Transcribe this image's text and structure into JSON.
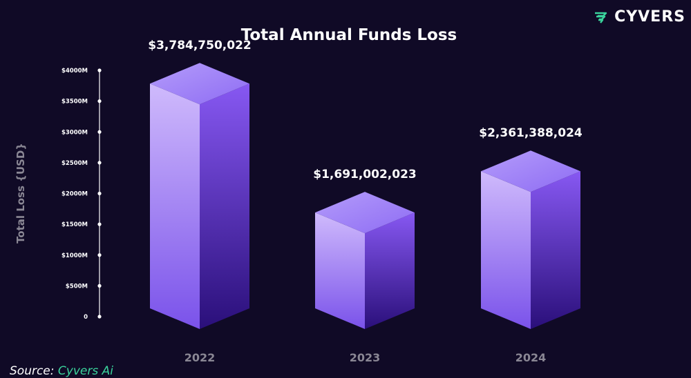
{
  "brand": {
    "name": "CYVERS",
    "logo_icon": "cyvers-logo-icon",
    "logo_color": "#3ad39c"
  },
  "source": {
    "prefix": "Source:",
    "link": "Cyvers Ai"
  },
  "chart_data": {
    "type": "bar",
    "title": "Total Annual Funds Loss",
    "xlabel": "",
    "ylabel": "Total Loss {USD}",
    "categories": [
      "2022",
      "2023",
      "2024"
    ],
    "values": [
      3784750022,
      1691002023,
      2361388024
    ],
    "value_labels": [
      "$3,784,750,022",
      "$1,691,002,023",
      "$2,361,388,024"
    ],
    "ylim": [
      0,
      4000000000
    ],
    "y_tick_labels": [
      "0",
      "$500M",
      "$1000M",
      "$1500M",
      "$2000M",
      "$2500M",
      "$3000M",
      "$3500M",
      "$4000M"
    ],
    "grid": false,
    "style": "3d-prism",
    "colors": {
      "background": "#100a26",
      "bar_top": "#9b7cf6",
      "bar_front_light": "#cfbafc",
      "bar_front_dark": "#7a52ea",
      "bar_side_light": "#8758f2",
      "bar_side_dark": "#2a0f7a",
      "axis": "#ffffff",
      "category_label": "#8a8794"
    }
  }
}
